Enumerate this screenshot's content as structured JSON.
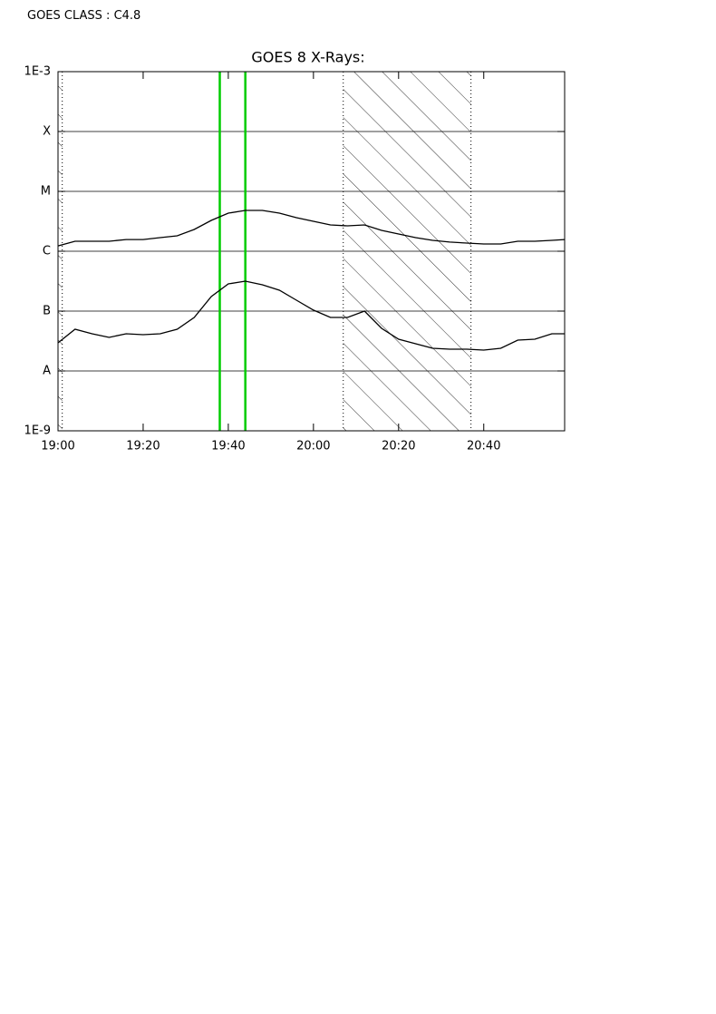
{
  "header": {
    "goes_class": "GOES CLASS : C4.8"
  },
  "chart_data": {
    "type": "line",
    "title": "GOES 8 X-Rays:",
    "log_y": true,
    "grid": true,
    "x": [
      "19:00",
      "19:04",
      "19:08",
      "19:12",
      "19:16",
      "19:20",
      "19:24",
      "19:28",
      "19:32",
      "19:36",
      "19:40",
      "19:44",
      "19:48",
      "19:52",
      "19:56",
      "20:00",
      "20:04",
      "20:08",
      "20:12",
      "20:16",
      "20:20",
      "20:24",
      "20:28",
      "20:32",
      "20:36",
      "20:40",
      "20:44",
      "20:48",
      "20:52",
      "20:56",
      "20:59"
    ],
    "xlim": [
      "19:00",
      "20:59"
    ],
    "xticks": [
      "19:00",
      "19:20",
      "19:40",
      "20:00",
      "20:20",
      "20:40"
    ],
    "ylim": [
      1e-09,
      0.001
    ],
    "yticks": [
      {
        "value": 0.001,
        "label": "1E-3"
      },
      {
        "value": 0.0001,
        "label": "X"
      },
      {
        "value": 1e-05,
        "label": "M"
      },
      {
        "value": 1e-06,
        "label": "C"
      },
      {
        "value": 1e-07,
        "label": "B"
      },
      {
        "value": 1e-08,
        "label": "A"
      },
      {
        "value": 1e-09,
        "label": "1E-9"
      }
    ],
    "series": [
      {
        "color": "#000000",
        "values": [
          1.23e-06,
          1.47e-06,
          1.47e-06,
          1.47e-06,
          1.57e-06,
          1.57e-06,
          1.69e-06,
          1.81e-06,
          2.31e-06,
          3.27e-06,
          4.33e-06,
          4.81e-06,
          4.81e-06,
          4.33e-06,
          3.64e-06,
          3.16e-06,
          2.75e-06,
          2.66e-06,
          2.75e-06,
          2.23e-06,
          1.94e-06,
          1.69e-06,
          1.52e-06,
          1.42e-06,
          1.37e-06,
          1.32e-06,
          1.32e-06,
          1.47e-06,
          1.47e-06,
          1.52e-06,
          1.57e-06
        ]
      },
      {
        "color": "#000000",
        "values": [
          2.95e-08,
          4.98e-08,
          4.18e-08,
          3.64e-08,
          4.18e-08,
          4.04e-08,
          4.18e-08,
          4.98e-08,
          7.83e-08,
          1.75e-07,
          2.85e-07,
          3.16e-07,
          2.75e-07,
          2.23e-07,
          1.52e-07,
          1.04e-07,
          7.83e-08,
          7.83e-08,
          1e-07,
          5.15e-08,
          3.39e-08,
          2.85e-08,
          2.39e-08,
          2.31e-08,
          2.31e-08,
          2.23e-08,
          2.39e-08,
          3.27e-08,
          3.39e-08,
          4.18e-08,
          4.18e-08
        ]
      }
    ],
    "markers": [
      "19:38",
      "19:44"
    ],
    "marker_color": "#00cc00",
    "shaded_intervals": [
      [
        "19:00",
        "19:01"
      ],
      [
        "20:07",
        "20:37"
      ]
    ]
  }
}
